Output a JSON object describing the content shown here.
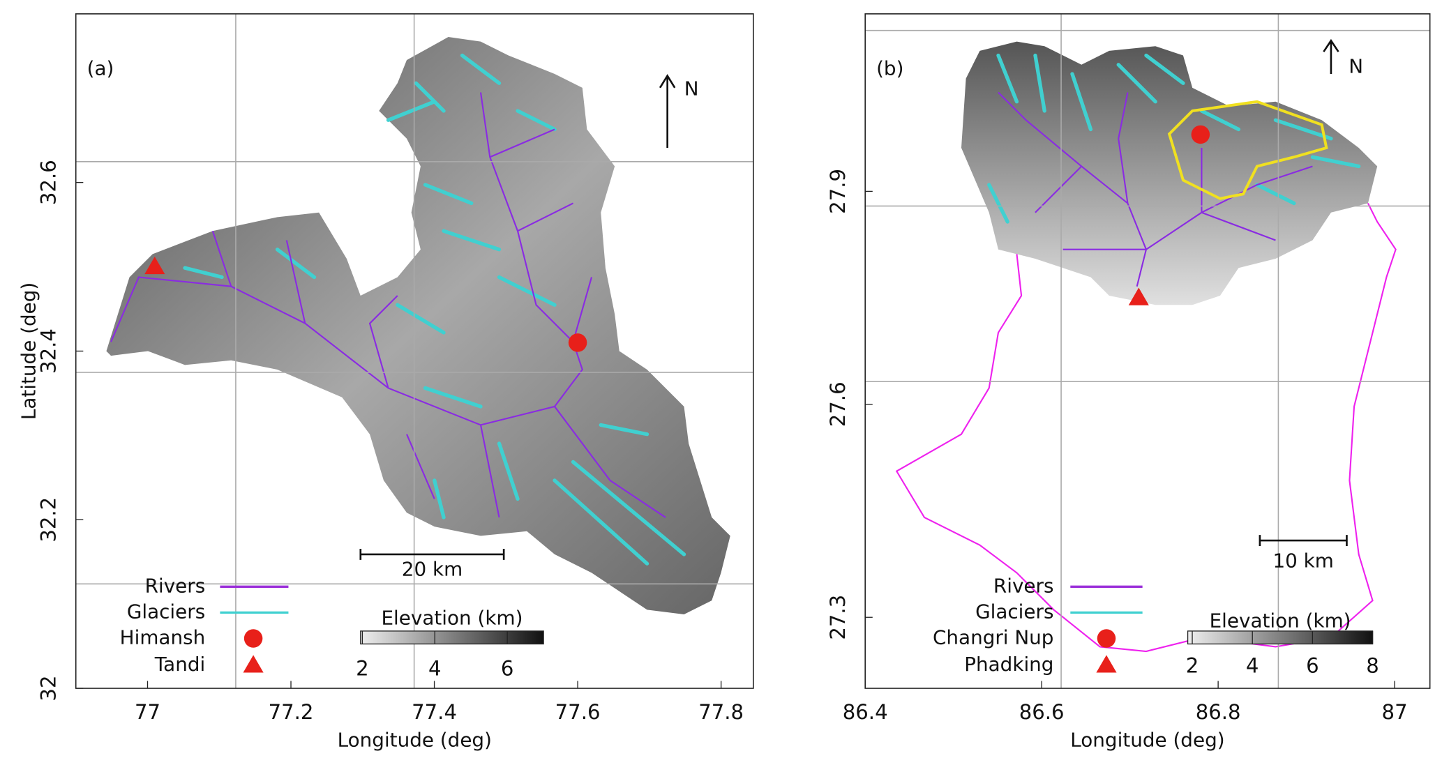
{
  "chart_data": [
    {
      "type": "map",
      "panel": "(a)",
      "xlabel": "Longitude (deg)",
      "ylabel": "Latitude (deg)",
      "xlim": [
        76.9,
        77.845
      ],
      "ylim": [
        32,
        32.8
      ],
      "xticks": [
        77,
        77.2,
        77.4,
        77.6,
        77.8
      ],
      "yticks": [
        32,
        32.2,
        32.4,
        32.6
      ],
      "north": "N",
      "scale_bar": "20 km",
      "colorbar": {
        "label": "Elevation (km)",
        "lim": [
          1.95,
          7
        ],
        "ticks": [
          2,
          4,
          6
        ]
      },
      "series": [
        {
          "name": "Rivers",
          "color": "#9b30d9"
        },
        {
          "name": "Glaciers",
          "color": "#40d0d0"
        }
      ],
      "points": [
        {
          "name": "Himansh",
          "x": 77.6,
          "y": 32.41,
          "marker": "circle",
          "color": "#e8201a"
        },
        {
          "name": "Tandi",
          "x": 77.01,
          "y": 32.5,
          "marker": "triangle",
          "color": "#e8201a"
        }
      ]
    },
    {
      "type": "map",
      "panel": "(b)",
      "xlabel": "Longitude (deg)",
      "xlim": [
        86.4,
        87.04
      ],
      "ylim": [
        27.2,
        28.15
      ],
      "xticks": [
        86.4,
        86.6,
        86.8,
        87
      ],
      "yticks": [
        27.3,
        27.6,
        27.9
      ],
      "north": "N",
      "scale_bar": "10 km",
      "colorbar": {
        "label": "Elevation (km)",
        "lim": [
          1.85,
          8
        ],
        "ticks": [
          2,
          4,
          6,
          8
        ]
      },
      "series": [
        {
          "name": "Rivers",
          "color": "#9b30d9"
        },
        {
          "name": "Glaciers",
          "color": "#40d0d0"
        }
      ],
      "points": [
        {
          "name": "Changri Nup",
          "x": 86.78,
          "y": 27.98,
          "marker": "circle",
          "color": "#e8201a"
        },
        {
          "name": "Phadking",
          "x": 86.71,
          "y": 27.75,
          "marker": "triangle",
          "color": "#e8201a"
        }
      ]
    }
  ]
}
